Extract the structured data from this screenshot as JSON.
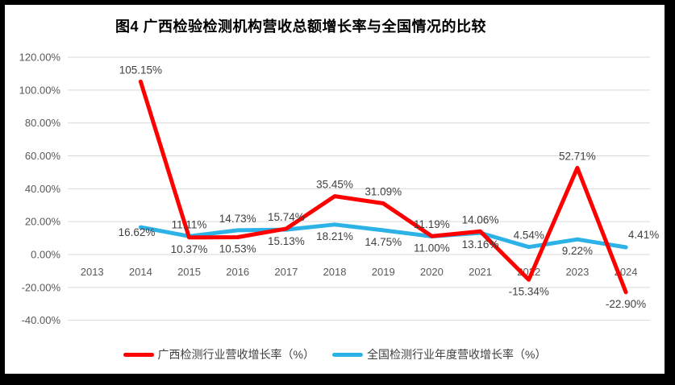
{
  "title": "图4 广西检验检测机构营收总额增长率与全国情况的比较",
  "colors": {
    "frame": "#000000",
    "background": "#FFFFFF",
    "gridline": "#D9D9D9",
    "axis_text": "#595959",
    "data_label_text": "#404040",
    "title_text": "#000000",
    "legend_text": "#404040",
    "guangxi_line": "#FF0000",
    "national_line": "#2DB2E8"
  },
  "chart_data": {
    "type": "line",
    "title": "图4 广西检验检测机构营收总额增长率与全国情况的比较",
    "categories": [
      "2013",
      "2014",
      "2015",
      "2016",
      "2017",
      "2018",
      "2019",
      "2020",
      "2021",
      "2022",
      "2023",
      "2024"
    ],
    "xlabel": "",
    "ylabel": "",
    "ylim": [
      -40,
      120
    ],
    "y_tick_labels": [
      "120.00%",
      "100.00%",
      "80.00%",
      "60.00%",
      "40.00%",
      "20.00%",
      "0.00%",
      "-20.00%",
      "-40.00%"
    ],
    "grid": true,
    "legend_position": "bottom",
    "series": [
      {
        "name": "广西检测行业营收增长率（%）",
        "color": "#FF0000",
        "values": [
          null,
          105.15,
          10.37,
          10.53,
          15.74,
          35.45,
          31.09,
          11.19,
          14.06,
          -15.34,
          52.71,
          -22.9
        ],
        "data_labels": [
          "",
          "105.15%",
          "10.37%",
          "10.53%",
          "15.74%",
          "35.45%",
          "31.09%",
          "11.19%",
          "14.06%",
          "-15.34%",
          "52.71%",
          "-22.90%"
        ],
        "label_placements": [
          "",
          "above",
          "below",
          "below",
          "above",
          "above",
          "above",
          "above",
          "above",
          "below",
          "above",
          "below"
        ]
      },
      {
        "name": "全国检测行业年度营收增长率（%）",
        "color": "#2DB2E8",
        "values": [
          null,
          16.62,
          11.11,
          14.73,
          15.13,
          18.21,
          14.75,
          11.0,
          13.16,
          4.54,
          9.22,
          4.41
        ],
        "data_labels": [
          "",
          "16.62%",
          "11.11%",
          "14.73%",
          "15.13%",
          "18.21%",
          "14.75%",
          "11.00%",
          "13.16%",
          "4.54%",
          "9.22%",
          "4.41%"
        ],
        "label_placements": [
          "",
          "left",
          "above",
          "above",
          "below",
          "below",
          "below",
          "below",
          "below",
          "above",
          "below",
          "right"
        ]
      }
    ]
  }
}
